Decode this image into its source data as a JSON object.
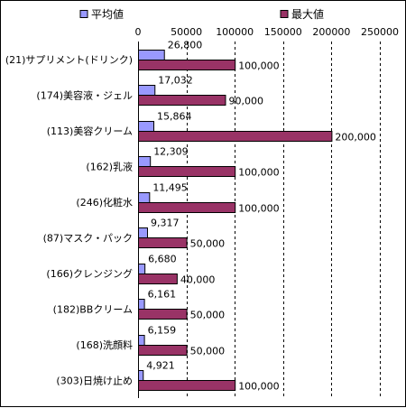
{
  "chart_data": {
    "type": "bar",
    "orientation": "horizontal",
    "categories": [
      "(21)サプリメント(ドリンク)",
      "(174)美容液・ジェル",
      "(113)美容クリーム",
      "(162)乳液",
      "(246)化粧水",
      "(87)マスク・パック",
      "(166)クレンジング",
      "(182)BBクリーム",
      "(168)洗顔料",
      "(303)日焼け止め"
    ],
    "series": [
      {
        "name": "平均値",
        "color": "#9999ff",
        "values": [
          26800,
          17032,
          15864,
          12309,
          11495,
          9317,
          6680,
          6161,
          6159,
          4921
        ],
        "labels": [
          "26,800",
          "17,032",
          "15,864",
          "12,309",
          "11,495",
          "9,317",
          "6,680",
          "6,161",
          "6,159",
          "4,921"
        ]
      },
      {
        "name": "最大値",
        "color": "#993366",
        "values": [
          100000,
          90000,
          200000,
          100000,
          100000,
          50000,
          40000,
          50000,
          50000,
          100000
        ],
        "labels": [
          "100,000",
          "90,000",
          "200,000",
          "100,000",
          "100,000",
          "50,000",
          "40,000",
          "50,000",
          "50,000",
          "100,000"
        ]
      }
    ],
    "xlim": [
      0,
      250000
    ],
    "xticks": [
      0,
      50000,
      100000,
      150000,
      200000,
      250000
    ],
    "xtick_labels": [
      "0",
      "50000",
      "100000",
      "150000",
      "200000",
      "250000"
    ],
    "axis_position": "top",
    "grid": "vertical dashed",
    "legend_position": "top"
  }
}
